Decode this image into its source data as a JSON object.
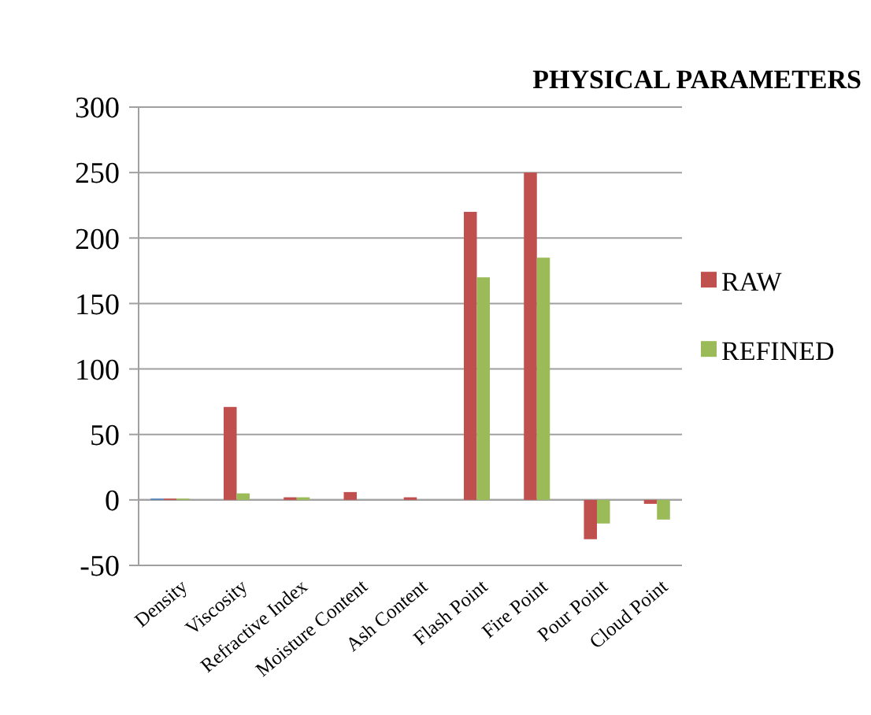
{
  "chart_data": {
    "type": "bar",
    "title": "PHYSICAL PARAMETERS",
    "categories": [
      "Density",
      "Viscosity",
      "Refractive Index",
      "Moisture Content",
      "Ash Content",
      "Flash Point",
      "Fire Point",
      "Pour Point",
      "Cloud Point"
    ],
    "series": [
      {
        "color": "#4f81bd",
        "values": [
          1,
          null,
          null,
          null,
          null,
          null,
          null,
          null,
          null
        ]
      },
      {
        "name": "RAW",
        "color": "#c0504d",
        "values": [
          1,
          71,
          2,
          6,
          2,
          220,
          250,
          -30,
          -3
        ]
      },
      {
        "name": "REFINED",
        "color": "#9bbb59",
        "values": [
          1,
          5,
          2,
          null,
          null,
          170,
          185,
          -18,
          -15
        ]
      }
    ],
    "ylim": [
      -50,
      300
    ],
    "yticks": [
      -50,
      0,
      50,
      100,
      150,
      200,
      250,
      300
    ],
    "grid": "y",
    "legend": "right"
  }
}
